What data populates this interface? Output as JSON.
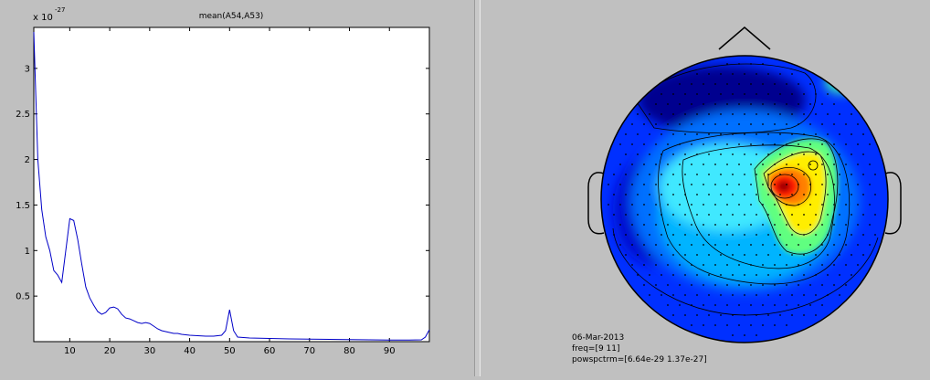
{
  "chart_data": [
    {
      "type": "line",
      "title": "mean(A54,A53)",
      "exponent_label": "x 10",
      "exponent_power": "-27",
      "xlabel": "",
      "ylabel": "",
      "xlim": [
        1,
        100
      ],
      "ylim": [
        0,
        3.45
      ],
      "grid": false,
      "xticks": [
        10,
        20,
        30,
        40,
        50,
        60,
        70,
        80,
        90
      ],
      "xtick_labels": [
        "10",
        "20",
        "30",
        "40",
        "50",
        "60",
        "70",
        "80",
        "90"
      ],
      "yticks": [
        0.5,
        1,
        1.5,
        2,
        2.5,
        3
      ],
      "ytick_labels": [
        "0.5",
        "1",
        "1.5",
        "2",
        "2.5",
        "3"
      ],
      "line_color": "#0000c8",
      "series": [
        {
          "x": [
            1,
            1.5,
            2,
            3,
            4,
            5,
            6,
            7,
            8,
            9,
            10,
            11,
            12,
            13,
            14,
            15,
            16,
            17,
            18,
            19,
            20,
            21,
            22,
            23,
            24,
            25,
            26,
            27,
            28,
            29,
            30,
            31,
            32,
            33,
            34,
            35,
            36,
            37,
            38,
            40,
            42,
            44,
            46,
            48,
            49,
            50,
            51,
            52,
            55,
            60,
            65,
            70,
            75,
            80,
            85,
            90,
            95,
            98,
            99,
            100
          ],
          "y": [
            3.4,
            2.7,
            2.0,
            1.45,
            1.15,
            1.0,
            0.78,
            0.73,
            0.65,
            1.0,
            1.35,
            1.33,
            1.12,
            0.85,
            0.6,
            0.48,
            0.4,
            0.33,
            0.3,
            0.32,
            0.37,
            0.38,
            0.36,
            0.3,
            0.26,
            0.25,
            0.23,
            0.21,
            0.2,
            0.21,
            0.2,
            0.17,
            0.14,
            0.12,
            0.11,
            0.1,
            0.09,
            0.09,
            0.08,
            0.07,
            0.065,
            0.06,
            0.06,
            0.07,
            0.12,
            0.35,
            0.12,
            0.05,
            0.04,
            0.035,
            0.03,
            0.028,
            0.025,
            0.022,
            0.02,
            0.018,
            0.017,
            0.02,
            0.05,
            0.13
          ]
        }
      ]
    },
    {
      "type": "heatmap",
      "title": "",
      "colormap": [
        "#00008f",
        "#0000ff",
        "#00ffff",
        "#ffff00",
        "#ff0000",
        "#800000"
      ],
      "contour_levels": 7,
      "max_location": "right-centre",
      "info": {
        "date": "06-Mar-2013",
        "freq": "freq=[9 11]",
        "powspctrm": "powspctrm=[6.64e-29 1.37e-27]"
      }
    }
  ]
}
